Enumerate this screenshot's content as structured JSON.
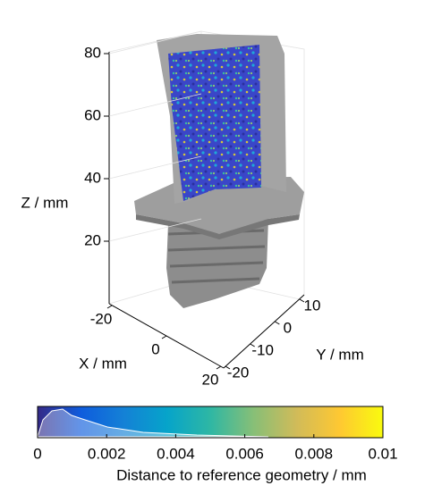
{
  "chart_data": {
    "type": "scatter3d",
    "xlabel": "X / mm",
    "ylabel": "Y / mm",
    "zlabel": "Z / mm",
    "xlim": [
      -20,
      20
    ],
    "xticks": [
      -20,
      0,
      20
    ],
    "ylim": [
      -20,
      10
    ],
    "yticks": [
      -20,
      -10,
      0,
      10
    ],
    "zlim": [
      0,
      80
    ],
    "zticks": [
      20,
      40,
      60,
      80
    ],
    "grid": true,
    "colorbar": {
      "label": "Distance to reference geometry / mm",
      "lim": [
        0,
        0.01
      ],
      "ticks": [
        0,
        0.002,
        0.004,
        0.006,
        0.008,
        0.01
      ],
      "colormap": [
        "#352a87",
        "#0f5cdd",
        "#1481d6",
        "#06a4ca",
        "#2eb7a4",
        "#87bf77",
        "#d1bb59",
        "#fec832",
        "#f9fb0e"
      ]
    }
  }
}
